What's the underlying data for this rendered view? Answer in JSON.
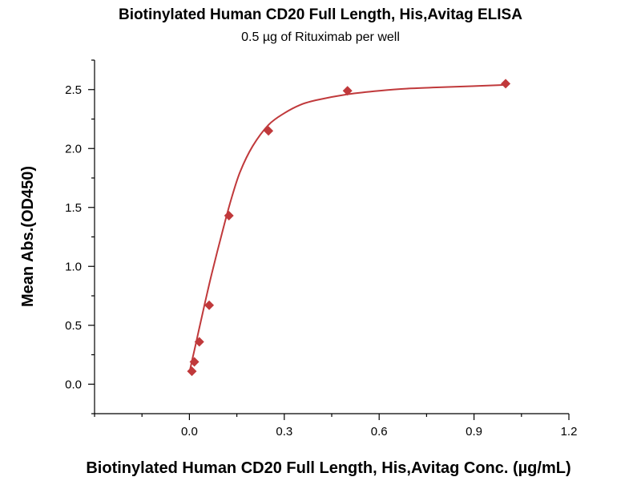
{
  "chart_data": {
    "type": "scatter",
    "title": "Biotinylated Human CD20 Full Length, His,Avitag ELISA",
    "subtitle": "0.5 µg of Rituximab per well",
    "xlabel": "Biotinylated Human CD20 Full Length, His,Avitag Conc. (µg/mL)",
    "ylabel": "Mean Abs.(OD450)",
    "xlim": [
      -0.3,
      1.2
    ],
    "ylim": [
      -0.25,
      2.75
    ],
    "x_ticks": [
      0.0,
      0.3,
      0.6,
      0.9,
      1.2
    ],
    "x_tick_labels": [
      "0.0",
      "0.3",
      "0.6",
      "0.9",
      "1.2"
    ],
    "y_ticks": [
      0.0,
      0.5,
      1.0,
      1.5,
      2.0,
      2.5
    ],
    "y_tick_labels": [
      "0.0",
      "0.5",
      "1.0",
      "1.5",
      "2.0",
      "2.5"
    ],
    "grid": false,
    "legend": "none",
    "colors": {
      "marker": "#c0393b",
      "fit_line": "#c0393b",
      "axis": "#000000"
    },
    "series": [
      {
        "x": [
          0.0078,
          0.0156,
          0.0313,
          0.0625,
          0.125,
          0.25,
          0.5,
          1.0
        ],
        "y": [
          0.11,
          0.19,
          0.36,
          0.67,
          1.43,
          2.15,
          2.49,
          2.55
        ]
      }
    ],
    "fit_curve": {
      "x": [
        0.0,
        0.01,
        0.02,
        0.03,
        0.05,
        0.07,
        0.1,
        0.13,
        0.16,
        0.2,
        0.25,
        0.3,
        0.35,
        0.4,
        0.5,
        0.6,
        0.7,
        0.8,
        1.0
      ],
      "y": [
        0.1,
        0.22,
        0.34,
        0.46,
        0.7,
        0.93,
        1.25,
        1.55,
        1.8,
        2.02,
        2.2,
        2.3,
        2.37,
        2.41,
        2.46,
        2.49,
        2.51,
        2.52,
        2.54
      ]
    }
  }
}
